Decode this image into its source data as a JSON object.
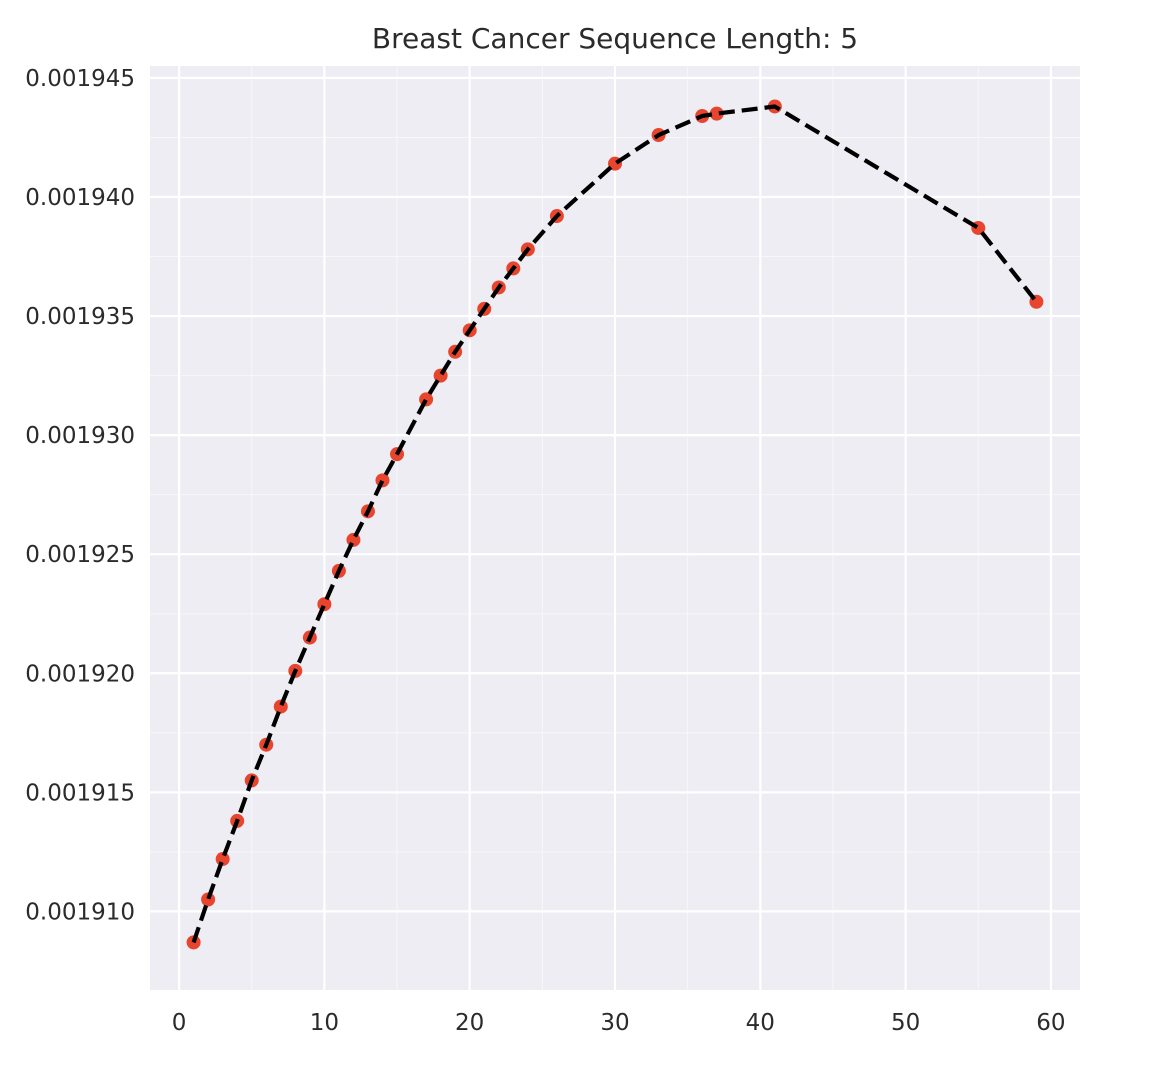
{
  "chart_data": {
    "type": "line",
    "title": "Breast Cancer Sequence Length: 5",
    "xlabel": "",
    "ylabel": "",
    "xlim": [
      -2,
      62
    ],
    "ylim": [
      0.0019067,
      0.0019455
    ],
    "x_ticks": [
      0,
      10,
      20,
      30,
      40,
      50,
      60
    ],
    "y_ticks": [
      0.00191,
      0.001915,
      0.00192,
      0.001925,
      0.00193,
      0.001935,
      0.00194,
      0.001945
    ],
    "x_tick_labels": [
      "0",
      "10",
      "20",
      "30",
      "40",
      "50",
      "60"
    ],
    "y_tick_labels": [
      "0.001910",
      "0.001915",
      "0.001920",
      "0.001925",
      "0.001930",
      "0.001935",
      "0.001940",
      "0.001945"
    ],
    "grid": true,
    "background": "#eeedf4",
    "grid_color": "#ffffff",
    "line_color": "#000000",
    "line_style": "dashed",
    "marker_color": "#e8452e",
    "series": [
      {
        "x": [
          1,
          2,
          3,
          4,
          5,
          6,
          7,
          8,
          9,
          10,
          11,
          12,
          13,
          14,
          15,
          17,
          18,
          19,
          20,
          21,
          22,
          23,
          24,
          26,
          30,
          33,
          36,
          37,
          41,
          55,
          59
        ],
        "y": [
          0.0019087,
          0.0019105,
          0.0019122,
          0.0019138,
          0.0019155,
          0.001917,
          0.0019186,
          0.0019201,
          0.0019215,
          0.0019229,
          0.0019243,
          0.0019256,
          0.0019268,
          0.0019281,
          0.0019292,
          0.0019315,
          0.0019325,
          0.0019335,
          0.0019344,
          0.0019353,
          0.0019362,
          0.001937,
          0.0019378,
          0.0019392,
          0.0019414,
          0.0019426,
          0.0019434,
          0.0019435,
          0.0019438,
          0.0019387,
          0.0019356
        ]
      }
    ]
  }
}
